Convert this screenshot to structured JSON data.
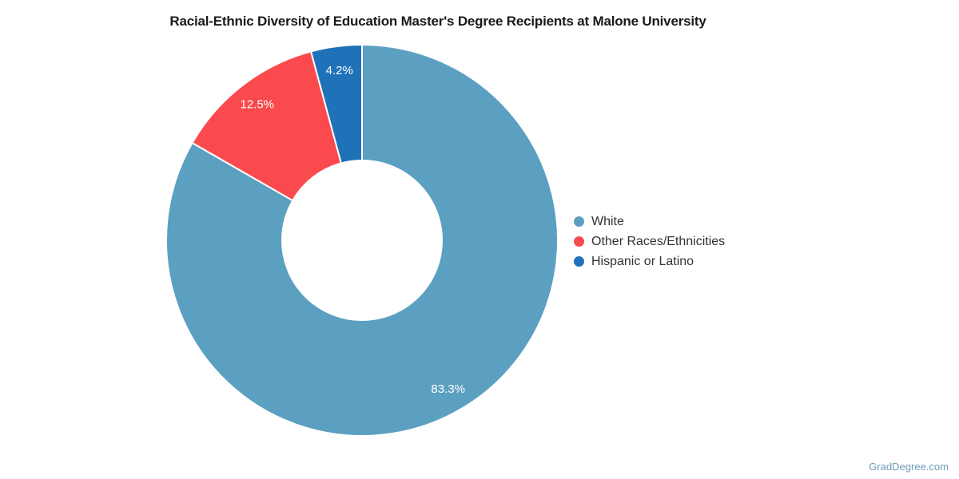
{
  "page": {
    "background": "#ffffff"
  },
  "chart_data": {
    "type": "pie",
    "donut": true,
    "title": "Racial-Ethnic Diversity of Education Master's Degree Recipients at Malone University",
    "start_angle_deg": 0,
    "direction": "clockwise",
    "inner_radius_ratio": 0.41,
    "legend_position": "right",
    "slice_border_color": "#ffffff",
    "label_color": "#ffffff",
    "slices": [
      {
        "label": "White",
        "value": 83.3,
        "display": "83.3%",
        "color": "#5ca0c1"
      },
      {
        "label": "Other Races/Ethnicities",
        "value": 12.5,
        "display": "12.5%",
        "color": "#fa4a4d"
      },
      {
        "label": "Hispanic or Latino",
        "value": 4.2,
        "display": "4.2%",
        "color": "#1f72b8"
      }
    ]
  },
  "text_colors": {
    "title": "#1a1a1a",
    "legend": "#333333"
  },
  "watermark": {
    "label": "GradDegree.com",
    "color": "#6d9bb8"
  }
}
